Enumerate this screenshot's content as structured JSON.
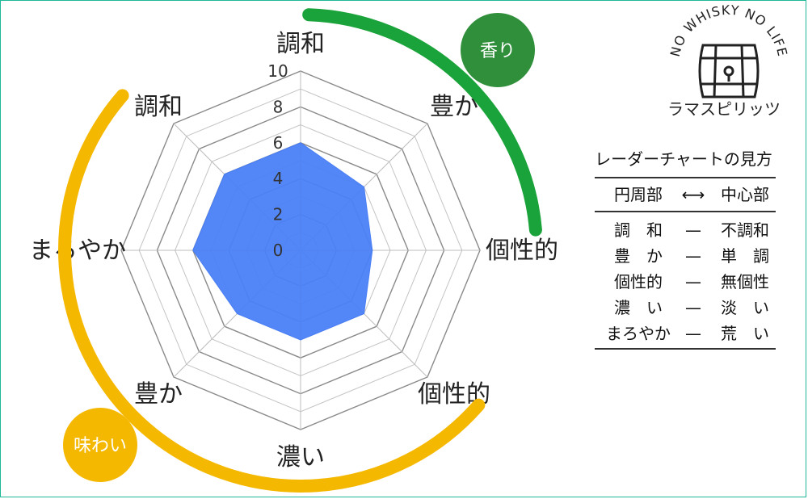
{
  "chart_data": {
    "type": "radar",
    "axes": [
      "調和",
      "豊か",
      "個性的",
      "個性的",
      "濃い",
      "豊か",
      "まろやか",
      "調和"
    ],
    "values": [
      6,
      5,
      4,
      5,
      5,
      5,
      6,
      6
    ],
    "ticks": [
      "0",
      "2",
      "4",
      "6",
      "8",
      "10"
    ],
    "range": [
      0,
      10
    ],
    "grid": true,
    "fill_color": "#4a7ff5"
  },
  "groups": {
    "aroma": {
      "label": "香り",
      "color": "#1aa33a",
      "badge_color": "#2f8f3a"
    },
    "taste": {
      "label": "味わい",
      "color": "#f5b800",
      "badge_color": "#f5b800"
    }
  },
  "logo": {
    "arc_text": "NO WHISKY NO LIFE",
    "name": "ラマスピリッツ",
    "icon": "barrel-icon"
  },
  "legend": {
    "title": "レーダーチャートの見方",
    "header_left": "円周部",
    "header_arrow": "⟷",
    "header_right": "中心部",
    "rows": [
      {
        "left": "調　和",
        "dash": "—",
        "right": "不調和"
      },
      {
        "left": "豊　か",
        "dash": "—",
        "right": "単　調"
      },
      {
        "left": "個性的",
        "dash": "—",
        "right": "無個性"
      },
      {
        "left": "濃　い",
        "dash": "—",
        "right": "淡　い"
      },
      {
        "left": "まろやか",
        "dash": "—",
        "right": "荒　い"
      }
    ]
  }
}
